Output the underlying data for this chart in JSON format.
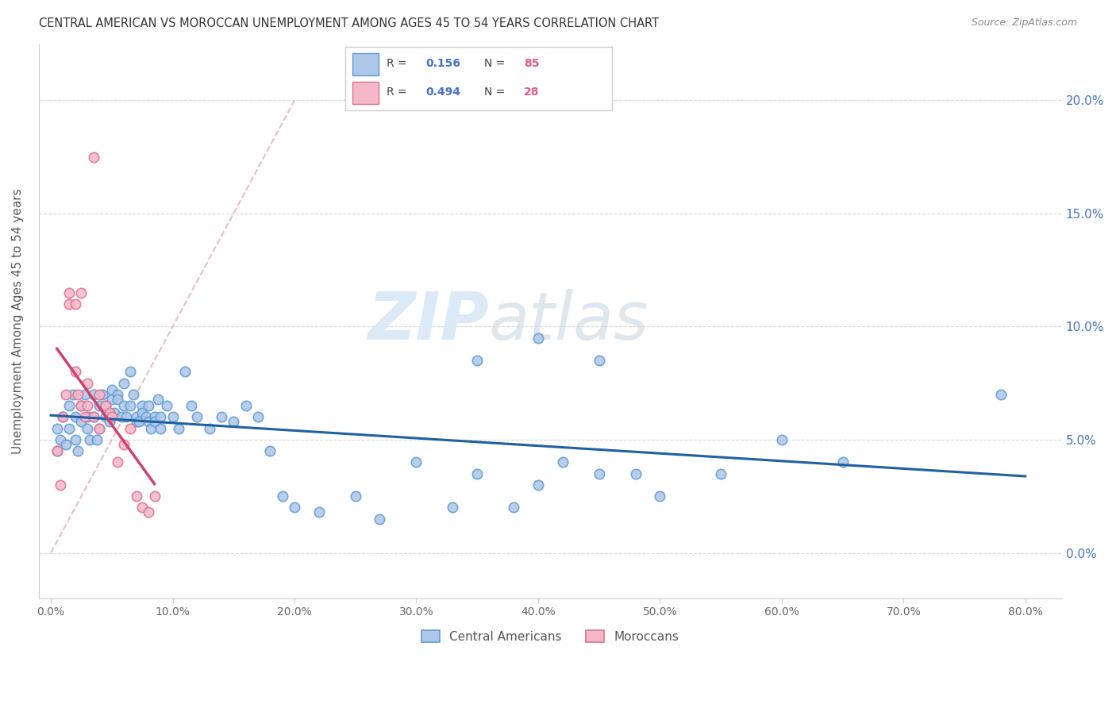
{
  "title": "CENTRAL AMERICAN VS MOROCCAN UNEMPLOYMENT AMONG AGES 45 TO 54 YEARS CORRELATION CHART",
  "source": "Source: ZipAtlas.com",
  "ylabel": "Unemployment Among Ages 45 to 54 years",
  "yticks": [
    "0.0%",
    "5.0%",
    "10.0%",
    "15.0%",
    "20.0%"
  ],
  "ytick_vals": [
    0.0,
    5.0,
    10.0,
    15.0,
    20.0
  ],
  "xtick_vals": [
    0.0,
    10.0,
    20.0,
    30.0,
    40.0,
    50.0,
    60.0,
    70.0,
    80.0
  ],
  "xtick_labels": [
    "0.0%",
    "10.0%",
    "20.0%",
    "30.0%",
    "40.0%",
    "50.0%",
    "60.0%",
    "70.0%",
    "80.0%"
  ],
  "legend1_R": "0.156",
  "legend1_N": "85",
  "legend2_R": "0.494",
  "legend2_N": "28",
  "blue_face_color": "#aec6e8",
  "blue_edge_color": "#5b9bd5",
  "pink_face_color": "#f4b8c8",
  "pink_edge_color": "#e07090",
  "blue_line_color": "#2060a0",
  "pink_line_color": "#d04070",
  "diag_line_color": "#e0a0b0",
  "watermark": "ZIPatlas",
  "background_color": "#ffffff",
  "xlim": [
    -1.0,
    83.0
  ],
  "ylim": [
    -2.0,
    22.5
  ],
  "blue_scatter_x": [
    0.5,
    0.5,
    0.8,
    1.0,
    1.2,
    1.5,
    1.5,
    1.8,
    2.0,
    2.0,
    2.2,
    2.5,
    2.5,
    2.8,
    3.0,
    3.0,
    3.2,
    3.5,
    3.5,
    3.8,
    4.0,
    4.0,
    4.2,
    4.5,
    4.5,
    4.8,
    5.0,
    5.0,
    5.2,
    5.5,
    5.5,
    5.8,
    6.0,
    6.0,
    6.2,
    6.5,
    6.5,
    6.8,
    7.0,
    7.0,
    7.2,
    7.5,
    7.5,
    7.8,
    8.0,
    8.0,
    8.2,
    8.5,
    8.5,
    8.8,
    9.0,
    9.0,
    9.5,
    10.0,
    10.5,
    11.0,
    11.5,
    12.0,
    13.0,
    14.0,
    15.0,
    16.0,
    17.0,
    18.0,
    19.0,
    20.0,
    22.0,
    25.0,
    27.0,
    30.0,
    33.0,
    35.0,
    38.0,
    40.0,
    42.0,
    45.0,
    48.0,
    50.0,
    55.0,
    60.0,
    65.0,
    35.0,
    40.0,
    45.0,
    78.0
  ],
  "blue_scatter_y": [
    4.5,
    5.5,
    5.0,
    6.0,
    4.8,
    6.5,
    5.5,
    7.0,
    6.0,
    5.0,
    4.5,
    6.5,
    5.8,
    7.0,
    5.5,
    6.0,
    5.0,
    7.0,
    6.0,
    5.0,
    6.5,
    5.5,
    7.0,
    6.0,
    6.5,
    5.8,
    7.2,
    6.8,
    6.2,
    7.0,
    6.8,
    6.0,
    7.5,
    6.5,
    6.0,
    8.0,
    6.5,
    7.0,
    5.8,
    6.0,
    5.8,
    6.5,
    6.2,
    6.0,
    5.8,
    6.5,
    5.5,
    6.0,
    5.8,
    6.8,
    6.0,
    5.5,
    6.5,
    6.0,
    5.5,
    8.0,
    6.5,
    6.0,
    5.5,
    6.0,
    5.8,
    6.5,
    6.0,
    4.5,
    2.5,
    2.0,
    1.8,
    2.5,
    1.5,
    4.0,
    2.0,
    3.5,
    2.0,
    3.0,
    4.0,
    8.5,
    3.5,
    2.5,
    3.5,
    5.0,
    4.0,
    8.5,
    9.5,
    3.5,
    7.0
  ],
  "pink_scatter_x": [
    0.5,
    0.8,
    1.0,
    1.2,
    1.5,
    1.5,
    2.0,
    2.0,
    2.2,
    2.5,
    2.5,
    2.8,
    3.0,
    3.0,
    3.5,
    3.5,
    4.0,
    4.0,
    4.5,
    4.8,
    5.0,
    5.5,
    6.0,
    6.5,
    7.0,
    7.5,
    8.0,
    8.5
  ],
  "pink_scatter_y": [
    4.5,
    3.0,
    6.0,
    7.0,
    11.0,
    11.5,
    11.0,
    8.0,
    7.0,
    6.5,
    11.5,
    6.0,
    7.5,
    6.5,
    17.5,
    6.0,
    5.5,
    7.0,
    6.5,
    6.2,
    6.0,
    4.0,
    4.8,
    5.5,
    2.5,
    2.0,
    1.8,
    2.5
  ]
}
